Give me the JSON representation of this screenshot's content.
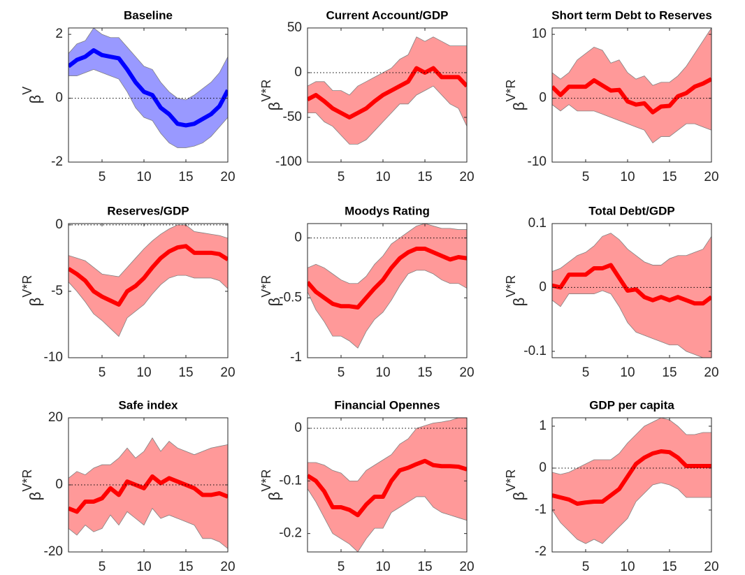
{
  "chart_data": [
    {
      "type": "line",
      "title": "Baseline",
      "ylabel": {
        "base": "β",
        "sup": "V"
      },
      "color": "#0000ff",
      "band_color": "#9999ff",
      "x": [
        1,
        2,
        3,
        4,
        5,
        6,
        7,
        8,
        9,
        10,
        11,
        12,
        13,
        14,
        15,
        16,
        17,
        18,
        19,
        20
      ],
      "values": [
        1.0,
        1.2,
        1.3,
        1.5,
        1.35,
        1.3,
        1.25,
        0.9,
        0.5,
        0.2,
        0.1,
        -0.3,
        -0.5,
        -0.8,
        -0.85,
        -0.8,
        -0.65,
        -0.5,
        -0.25,
        0.25
      ],
      "upper": [
        1.4,
        1.7,
        1.8,
        2.2,
        2.0,
        1.9,
        1.9,
        1.6,
        1.3,
        1.0,
        0.9,
        0.5,
        0.2,
        0.0,
        -0.05,
        0.1,
        0.3,
        0.5,
        0.8,
        1.3
      ],
      "lower": [
        0.7,
        0.7,
        0.8,
        0.9,
        0.8,
        0.7,
        0.6,
        0.2,
        -0.3,
        -0.6,
        -0.7,
        -1.1,
        -1.4,
        -1.55,
        -1.55,
        -1.5,
        -1.4,
        -1.2,
        -0.9,
        -0.6
      ],
      "xlim": [
        1,
        20
      ],
      "xticks": [
        5,
        10,
        15,
        20
      ],
      "ylim": [
        -2,
        2.2
      ],
      "yticks": [
        -2,
        0,
        2
      ],
      "zero_line": true
    },
    {
      "type": "line",
      "title": "Current Account/GDP",
      "ylabel": {
        "base": "β",
        "sup": "V*R"
      },
      "color": "#ff0000",
      "band_color": "#ff9999",
      "x": [
        1,
        2,
        3,
        4,
        5,
        6,
        7,
        8,
        9,
        10,
        11,
        12,
        13,
        14,
        15,
        16,
        17,
        18,
        19,
        20
      ],
      "values": [
        -30,
        -25,
        -32,
        -40,
        -45,
        -50,
        -45,
        -40,
        -32,
        -25,
        -20,
        -15,
        -10,
        5,
        0,
        5,
        -5,
        -5,
        -5,
        -15
      ],
      "upper": [
        -15,
        -10,
        -10,
        -20,
        -20,
        -25,
        -15,
        -10,
        -5,
        0,
        5,
        15,
        20,
        40,
        35,
        40,
        35,
        30,
        30,
        30
      ],
      "lower": [
        -45,
        -45,
        -55,
        -60,
        -70,
        -80,
        -80,
        -75,
        -65,
        -55,
        -45,
        -35,
        -35,
        -25,
        -20,
        -15,
        -25,
        -35,
        -40,
        -60
      ],
      "xlim": [
        1,
        20
      ],
      "xticks": [
        5,
        10,
        15,
        20
      ],
      "ylim": [
        -100,
        50
      ],
      "yticks": [
        -100,
        -50,
        0,
        50
      ],
      "zero_line": true
    },
    {
      "type": "line",
      "title": "Short term Debt to Reserves",
      "ylabel": {
        "base": "β",
        "sup": "V*R"
      },
      "color": "#ff0000",
      "band_color": "#ff9999",
      "x": [
        1,
        2,
        3,
        4,
        5,
        6,
        7,
        8,
        9,
        10,
        11,
        12,
        13,
        14,
        15,
        16,
        17,
        18,
        19,
        20
      ],
      "values": [
        1.8,
        0.5,
        1.8,
        1.8,
        1.8,
        2.8,
        2,
        1.2,
        1.3,
        -0.5,
        -1,
        -0.8,
        -2.2,
        -1.3,
        -1.2,
        0.3,
        0.8,
        1.8,
        2.3,
        3
      ],
      "upper": [
        4,
        3,
        4,
        6,
        7,
        8,
        7.5,
        5.5,
        6,
        4,
        3,
        3.5,
        2,
        2.5,
        2.5,
        3.5,
        5,
        7,
        9,
        11
      ],
      "lower": [
        -1,
        -2,
        -1,
        -2,
        -2,
        -2,
        -2.5,
        -3,
        -3.5,
        -4,
        -4.5,
        -5,
        -7,
        -6,
        -6,
        -5,
        -4,
        -4,
        -4.5,
        -5
      ],
      "xlim": [
        1,
        20
      ],
      "xticks": [
        5,
        10,
        15,
        20
      ],
      "ylim": [
        -10,
        11
      ],
      "yticks": [
        -10,
        0,
        10
      ],
      "zero_line": true
    },
    {
      "type": "line",
      "title": "Reserves/GDP",
      "ylabel": {
        "base": "β",
        "sup": "V*R"
      },
      "color": "#ff0000",
      "band_color": "#ff9999",
      "x": [
        1,
        2,
        3,
        4,
        5,
        6,
        7,
        8,
        9,
        10,
        11,
        12,
        13,
        14,
        15,
        16,
        17,
        18,
        19,
        20
      ],
      "values": [
        -3.3,
        -3.7,
        -4.2,
        -5,
        -5.4,
        -5.7,
        -6,
        -5,
        -4.6,
        -4,
        -3.2,
        -2.5,
        -2,
        -1.7,
        -1.6,
        -2.1,
        -2.1,
        -2.1,
        -2.2,
        -2.6
      ],
      "upper": [
        -2.3,
        -2.5,
        -2.7,
        -3.2,
        -3.7,
        -3.8,
        -3.9,
        -3.2,
        -2.5,
        -1.8,
        -1.2,
        -0.7,
        -0.3,
        0,
        0,
        -0.5,
        -0.6,
        -0.7,
        -0.8,
        -1
      ],
      "lower": [
        -4.3,
        -5,
        -5.8,
        -6.7,
        -7.2,
        -7.8,
        -8.4,
        -7,
        -6.5,
        -6,
        -5.2,
        -4.5,
        -4,
        -3.8,
        -3.8,
        -4,
        -4,
        -4,
        -4.2,
        -4.8
      ],
      "xlim": [
        1,
        20
      ],
      "xticks": [
        5,
        10,
        15,
        20
      ],
      "ylim": [
        -10,
        0.1
      ],
      "yticks": [
        -10,
        -5,
        0
      ],
      "zero_line": true
    },
    {
      "type": "line",
      "title": "Moodys Rating",
      "ylabel": {
        "base": "β",
        "sup": "V*R"
      },
      "color": "#ff0000",
      "band_color": "#ff9999",
      "x": [
        1,
        2,
        3,
        4,
        5,
        6,
        7,
        8,
        9,
        10,
        11,
        12,
        13,
        14,
        15,
        16,
        17,
        18,
        19,
        20
      ],
      "values": [
        -0.37,
        -0.45,
        -0.5,
        -0.55,
        -0.57,
        -0.57,
        -0.58,
        -0.5,
        -0.42,
        -0.35,
        -0.25,
        -0.17,
        -0.12,
        -0.09,
        -0.09,
        -0.12,
        -0.15,
        -0.18,
        -0.16,
        -0.17
      ],
      "upper": [
        -0.25,
        -0.22,
        -0.25,
        -0.3,
        -0.35,
        -0.38,
        -0.38,
        -0.32,
        -0.22,
        -0.15,
        -0.05,
        0.0,
        0.05,
        0.1,
        0.12,
        0.1,
        0.08,
        0.08,
        0.07,
        0.07
      ],
      "lower": [
        -0.45,
        -0.6,
        -0.7,
        -0.82,
        -0.82,
        -0.86,
        -0.92,
        -0.78,
        -0.68,
        -0.62,
        -0.52,
        -0.4,
        -0.3,
        -0.27,
        -0.27,
        -0.3,
        -0.35,
        -0.38,
        -0.38,
        -0.42
      ],
      "xlim": [
        1,
        20
      ],
      "xticks": [
        5,
        10,
        15,
        20
      ],
      "ylim": [
        -1,
        0.12
      ],
      "yticks": [
        -1,
        -0.5,
        0
      ],
      "zero_line": true
    },
    {
      "type": "line",
      "title": "Total Debt/GDP",
      "ylabel": {
        "base": "β",
        "sup": "V*R"
      },
      "color": "#ff0000",
      "band_color": "#ff9999",
      "x": [
        1,
        2,
        3,
        4,
        5,
        6,
        7,
        8,
        9,
        10,
        11,
        12,
        13,
        14,
        15,
        16,
        17,
        18,
        19,
        20
      ],
      "values": [
        0.003,
        0,
        0.02,
        0.02,
        0.02,
        0.03,
        0.03,
        0.035,
        0.015,
        -0.005,
        -0.003,
        -0.015,
        -0.02,
        -0.015,
        -0.02,
        -0.015,
        -0.02,
        -0.025,
        -0.025,
        -0.015
      ],
      "upper": [
        0.025,
        0.03,
        0.04,
        0.05,
        0.055,
        0.065,
        0.08,
        0.085,
        0.075,
        0.06,
        0.05,
        0.04,
        0.035,
        0.035,
        0.045,
        0.05,
        0.05,
        0.055,
        0.06,
        0.08
      ],
      "lower": [
        -0.02,
        -0.03,
        -0.01,
        -0.01,
        -0.01,
        -0.01,
        -0.005,
        -0.01,
        -0.03,
        -0.055,
        -0.07,
        -0.075,
        -0.08,
        -0.085,
        -0.09,
        -0.09,
        -0.1,
        -0.105,
        -0.11,
        -0.11
      ],
      "xlim": [
        1,
        20
      ],
      "xticks": [
        5,
        10,
        15,
        20
      ],
      "ylim": [
        -0.11,
        0.1
      ],
      "yticks": [
        -0.1,
        0,
        0.1
      ],
      "zero_line": true
    },
    {
      "type": "line",
      "title": "Safe index",
      "ylabel": {
        "base": "β",
        "sup": "V*R"
      },
      "color": "#ff0000",
      "band_color": "#ff9999",
      "x": [
        1,
        2,
        3,
        4,
        5,
        6,
        7,
        8,
        9,
        10,
        11,
        12,
        13,
        14,
        15,
        16,
        17,
        18,
        19,
        20
      ],
      "values": [
        -7,
        -8,
        -5,
        -5,
        -4,
        -1,
        -3,
        1,
        0,
        -1,
        2.5,
        0.5,
        2,
        1,
        0,
        -1,
        -3,
        -3,
        -2.5,
        -3.5
      ],
      "upper": [
        2,
        4,
        3,
        5,
        6,
        6,
        8,
        11,
        8,
        10,
        14,
        10,
        13,
        11,
        10,
        9,
        10,
        11,
        11.5,
        12
      ],
      "lower": [
        -13,
        -15,
        -12,
        -14,
        -13,
        -9,
        -12,
        -8,
        -10,
        -12,
        -7,
        -10,
        -9,
        -10,
        -11,
        -12,
        -16,
        -16,
        -17,
        -19
      ],
      "xlim": [
        1,
        20
      ],
      "xticks": [
        5,
        10,
        15,
        20
      ],
      "ylim": [
        -20,
        20
      ],
      "yticks": [
        -20,
        0,
        20
      ],
      "zero_line": true
    },
    {
      "type": "line",
      "title": "Financial Opennes",
      "ylabel": {
        "base": "β",
        "sup": "V*R"
      },
      "color": "#ff0000",
      "band_color": "#ff9999",
      "x": [
        1,
        2,
        3,
        4,
        5,
        6,
        7,
        8,
        9,
        10,
        11,
        12,
        13,
        14,
        15,
        16,
        17,
        18,
        19,
        20
      ],
      "values": [
        -0.09,
        -0.1,
        -0.12,
        -0.15,
        -0.15,
        -0.155,
        -0.165,
        -0.145,
        -0.13,
        -0.13,
        -0.1,
        -0.08,
        -0.075,
        -0.068,
        -0.062,
        -0.07,
        -0.072,
        -0.072,
        -0.073,
        -0.078
      ],
      "upper": [
        -0.065,
        -0.065,
        -0.07,
        -0.08,
        -0.085,
        -0.1,
        -0.1,
        -0.08,
        -0.07,
        -0.06,
        -0.05,
        -0.03,
        -0.02,
        0,
        0.005,
        0.01,
        0.012,
        0.015,
        0.02,
        0.02
      ],
      "lower": [
        -0.115,
        -0.14,
        -0.17,
        -0.2,
        -0.21,
        -0.22,
        -0.235,
        -0.21,
        -0.19,
        -0.19,
        -0.16,
        -0.15,
        -0.14,
        -0.13,
        -0.13,
        -0.15,
        -0.16,
        -0.165,
        -0.17,
        -0.175
      ],
      "xlim": [
        1,
        20
      ],
      "xticks": [
        5,
        10,
        15,
        20
      ],
      "ylim": [
        -0.235,
        0.02
      ],
      "yticks": [
        -0.2,
        -0.1,
        0
      ],
      "zero_line": true
    },
    {
      "type": "line",
      "title": "GDP per capita",
      "ylabel": {
        "base": "β",
        "sup": "V*R"
      },
      "color": "#ff0000",
      "band_color": "#ff9999",
      "x": [
        1,
        2,
        3,
        4,
        5,
        6,
        7,
        8,
        9,
        10,
        11,
        12,
        13,
        14,
        15,
        16,
        17,
        18,
        19,
        20
      ],
      "values": [
        -0.65,
        -0.7,
        -0.75,
        -0.85,
        -0.82,
        -0.8,
        -0.8,
        -0.65,
        -0.5,
        -0.2,
        0.1,
        0.25,
        0.35,
        0.4,
        0.38,
        0.25,
        0.05,
        0.05,
        0.05,
        0.05
      ],
      "upper": [
        -0.1,
        -0.15,
        -0.1,
        0,
        0.1,
        0.2,
        0.2,
        0.2,
        0.35,
        0.6,
        0.8,
        1.0,
        1.1,
        1.2,
        1.15,
        1.0,
        0.8,
        0.8,
        0.85,
        0.85
      ],
      "lower": [
        -1.0,
        -1.3,
        -1.5,
        -1.7,
        -1.8,
        -1.7,
        -1.8,
        -1.6,
        -1.4,
        -1.2,
        -0.8,
        -0.6,
        -0.4,
        -0.35,
        -0.4,
        -0.5,
        -0.7,
        -0.7,
        -0.7,
        -0.7
      ],
      "xlim": [
        1,
        20
      ],
      "xticks": [
        5,
        10,
        15,
        20
      ],
      "ylim": [
        -2,
        1.2
      ],
      "yticks": [
        -2,
        -1,
        0,
        1
      ],
      "zero_line": true
    }
  ]
}
